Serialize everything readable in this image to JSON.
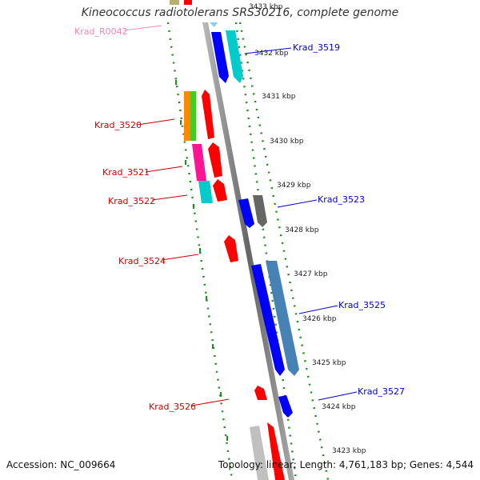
{
  "title": "Kineococcus radiotolerans SRS30216, complete genome",
  "footer": {
    "accession": "Accession: NC_009664",
    "summary": "Topology: linear; Length: 4,761,183 bp; Genes: 4,544"
  },
  "colors": {
    "forward_label": "#0000cc",
    "reverse_label": "#cc0000",
    "rna_label": "#ee88bb",
    "axis_dots": "#228b22",
    "backbone": "#888888"
  },
  "ticks": [
    "3433 kbp",
    "3432 kbp",
    "3431 kbp",
    "3430 kbp",
    "3429 kbp",
    "3428 kbp",
    "3427 kbp",
    "3426 kbp",
    "3425 kbp",
    "3424 kbp",
    "3423 kbp"
  ],
  "gene_labels": [
    {
      "text": "Krad_R0042",
      "strand": "rna"
    },
    {
      "text": "Krad_3519",
      "strand": "forward"
    },
    {
      "text": "Krad_3520",
      "strand": "reverse"
    },
    {
      "text": "Krad_3521",
      "strand": "reverse"
    },
    {
      "text": "Krad_3522",
      "strand": "reverse"
    },
    {
      "text": "Krad_3523",
      "strand": "forward"
    },
    {
      "text": "Krad_3524",
      "strand": "reverse"
    },
    {
      "text": "Krad_3525",
      "strand": "forward"
    },
    {
      "text": "Krad_3526",
      "strand": "reverse"
    },
    {
      "text": "Krad_3527",
      "strand": "forward"
    }
  ]
}
